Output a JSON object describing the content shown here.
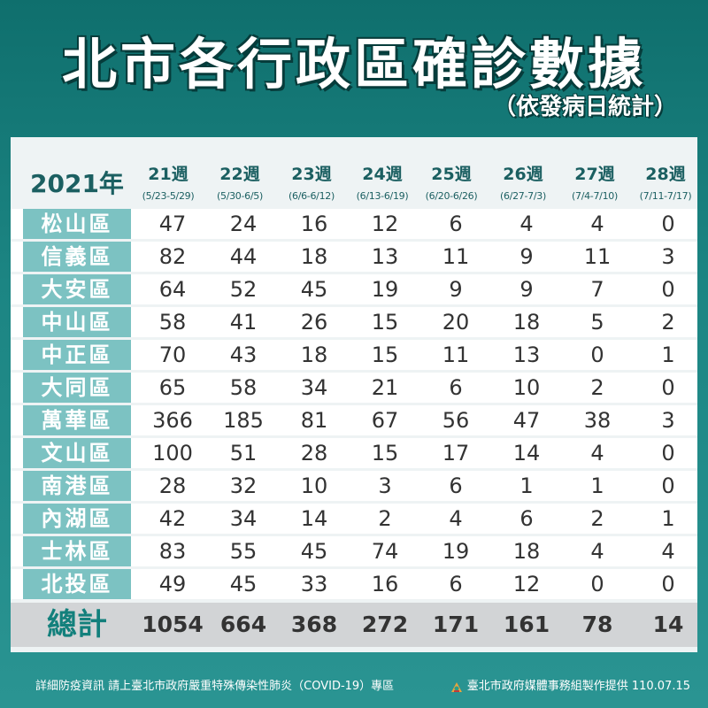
{
  "title": "北市各行政區確診數據",
  "subtitle": "（依發病日統計）",
  "year_label": "2021年",
  "weeks": [
    {
      "label": "21週",
      "range": "(5/23-5/29)"
    },
    {
      "label": "22週",
      "range": "(5/30-6/5)"
    },
    {
      "label": "23週",
      "range": "(6/6-6/12)"
    },
    {
      "label": "24週",
      "range": "(6/13-6/19)"
    },
    {
      "label": "25週",
      "range": "(6/20-6/26)"
    },
    {
      "label": "26週",
      "range": "(6/27-7/3)"
    },
    {
      "label": "27週",
      "range": "(7/4-7/10)"
    },
    {
      "label": "28週",
      "range": "(7/11-7/17)"
    }
  ],
  "districts": [
    {
      "name": "松山區",
      "values": [
        47,
        24,
        16,
        12,
        6,
        4,
        4,
        0
      ]
    },
    {
      "name": "信義區",
      "values": [
        82,
        44,
        18,
        13,
        11,
        9,
        11,
        3
      ]
    },
    {
      "name": "大安區",
      "values": [
        64,
        52,
        45,
        19,
        9,
        9,
        7,
        0
      ]
    },
    {
      "name": "中山區",
      "values": [
        58,
        41,
        26,
        15,
        20,
        18,
        5,
        2
      ]
    },
    {
      "name": "中正區",
      "values": [
        70,
        43,
        18,
        15,
        11,
        13,
        0,
        1
      ]
    },
    {
      "name": "大同區",
      "values": [
        65,
        58,
        34,
        21,
        6,
        10,
        2,
        0
      ]
    },
    {
      "name": "萬華區",
      "values": [
        366,
        185,
        81,
        67,
        56,
        47,
        38,
        3
      ]
    },
    {
      "name": "文山區",
      "values": [
        100,
        51,
        28,
        15,
        17,
        14,
        4,
        0
      ]
    },
    {
      "name": "南港區",
      "values": [
        28,
        32,
        10,
        3,
        6,
        1,
        1,
        0
      ]
    },
    {
      "name": "內湖區",
      "values": [
        42,
        34,
        14,
        2,
        4,
        6,
        2,
        1
      ]
    },
    {
      "name": "士林區",
      "values": [
        83,
        55,
        45,
        74,
        19,
        18,
        4,
        4
      ]
    },
    {
      "name": "北投區",
      "values": [
        49,
        45,
        33,
        16,
        6,
        12,
        0,
        0
      ]
    }
  ],
  "total": {
    "label": "總計",
    "values": [
      1054,
      664,
      368,
      272,
      171,
      161,
      78,
      14
    ]
  },
  "footer": {
    "left": "詳細防疫資訊 請上臺北市政府嚴重特殊傳染性肺炎（COVID-19）專區",
    "right": "臺北市政府媒體事務組製作提供 110.07.15"
  },
  "colors": {
    "background": "#1c8583",
    "name_cell": "#7cc2c2",
    "total_label": "#13807c",
    "total_row": "#d2d4d6"
  },
  "icons": {
    "footer_logo": "taipei-logo-icon"
  }
}
